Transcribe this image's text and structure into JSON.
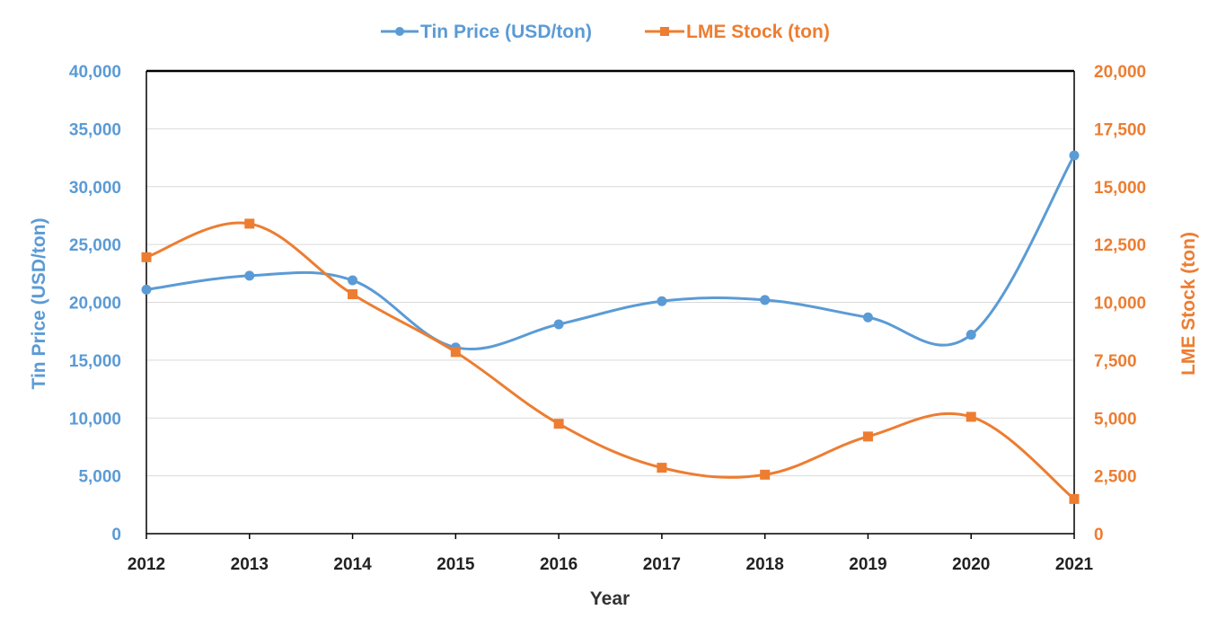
{
  "chart_data": {
    "type": "line",
    "title": "",
    "x": [
      "2012",
      "2013",
      "2014",
      "2015",
      "2016",
      "2017",
      "2018",
      "2019",
      "2020",
      "2021"
    ],
    "xlabel": "Year",
    "series": [
      {
        "name": "Tin Price (USD/ton)",
        "axis": "left",
        "color": "#5b9bd5",
        "marker": "circle",
        "values": [
          21100,
          22300,
          21900,
          16100,
          18100,
          20100,
          20200,
          18700,
          17200,
          32700
        ]
      },
      {
        "name": "LME Stock (ton)",
        "axis": "right",
        "color": "#ed7d31",
        "marker": "square",
        "values": [
          11950,
          13400,
          10350,
          7850,
          4750,
          2850,
          2550,
          4200,
          5050,
          1500
        ]
      }
    ],
    "y_left": {
      "label": "Tin Price (USD/ton)",
      "lim": [
        0,
        40000
      ],
      "ticks": [
        "0",
        "5,000",
        "10,000",
        "15,000",
        "20,000",
        "25,000",
        "30,000",
        "35,000",
        "40,000"
      ],
      "color": "#5b9bd5"
    },
    "y_right": {
      "label": "LME Stock (ton)",
      "lim": [
        0,
        20000
      ],
      "ticks": [
        "0",
        "2,500",
        "5,000",
        "7,500",
        "10,000",
        "12,500",
        "15,000",
        "17,500",
        "20,000"
      ],
      "color": "#ed7d31"
    },
    "grid": true,
    "legend": "top-center"
  }
}
